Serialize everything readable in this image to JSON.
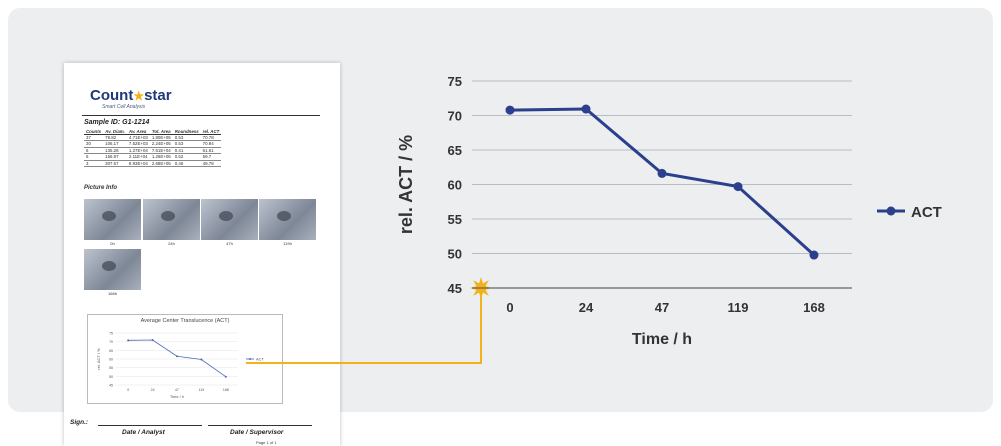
{
  "report": {
    "logo_left": "Count",
    "logo_star": "★",
    "logo_right": "star",
    "logo_sub": "Smart Cell Analysis",
    "sample_label": "Sample ID:",
    "sample_id": "G1-1214",
    "table": {
      "headers": [
        "Counts",
        "Av. Diam.",
        "Av. Area",
        "Tot. Area",
        "Roundness",
        "rel. ACT"
      ],
      "rows": [
        [
          "37",
          "78.82",
          "4.71E+03",
          "1.80E+05",
          "0.53",
          "70.78"
        ],
        [
          "30",
          "106.17",
          "7.52E+03",
          "2.24E+05",
          "0.53",
          "70.94"
        ],
        [
          "6",
          "135.28",
          "1.27E+04",
          "7.61E+04",
          "0.41",
          "61.61"
        ],
        [
          "6",
          "156.97",
          "2.11E+04",
          "1.26E+05",
          "0.52",
          "59.7"
        ],
        [
          "3",
          "307.67",
          "8.93E+04",
          "2.68E+05",
          "0.46",
          "49.78"
        ]
      ]
    },
    "picture_title": "Picture Info",
    "picture_labels": [
      "0h",
      "24h",
      "47h",
      "119h",
      "168h"
    ],
    "mini_chart_title": "Average Center Translucence (ACT)",
    "mini_legend": "ACT",
    "sign_label": "Sign.:",
    "sig_analyst": "Date / Analyst",
    "sig_supervisor": "Date / Supervisor",
    "page_number": "Page 1 of 1"
  },
  "colors": {
    "series": "#2b3f8c",
    "connector": "#f3b21a",
    "panel": "#eceef0"
  },
  "chart_data": {
    "type": "line",
    "categories": [
      "0",
      "24",
      "47",
      "119",
      "168"
    ],
    "series": [
      {
        "name": "ACT",
        "values": [
          70.78,
          70.94,
          61.61,
          59.7,
          49.78
        ]
      }
    ],
    "xlabel": "Time / h",
    "ylabel": "rel. ACT / %",
    "ylim": [
      45,
      75
    ],
    "yticks": [
      45,
      50,
      55,
      60,
      65,
      70,
      75
    ],
    "grid": true,
    "legend": "right"
  }
}
